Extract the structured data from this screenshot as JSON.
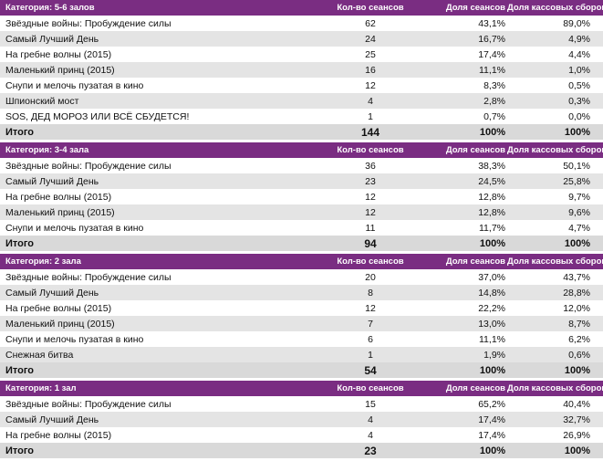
{
  "columns": {
    "sessions": "Кол-во сеансов",
    "share_sessions": "Доля сеансов",
    "share_boxoffice": "Доля кассовых сборов"
  },
  "total_label": "Итого",
  "categories": [
    {
      "title": "Категория: 5-6 залов",
      "rows": [
        {
          "film": "Звёздные войны: Пробуждение силы",
          "sessions": "62",
          "share_sessions": "43,1%",
          "share_boxoffice": "89,0%"
        },
        {
          "film": "Самый Лучший День",
          "sessions": "24",
          "share_sessions": "16,7%",
          "share_boxoffice": "4,9%"
        },
        {
          "film": "На гребне волны (2015)",
          "sessions": "25",
          "share_sessions": "17,4%",
          "share_boxoffice": "4,4%"
        },
        {
          "film": "Маленький принц (2015)",
          "sessions": "16",
          "share_sessions": "11,1%",
          "share_boxoffice": "1,0%"
        },
        {
          "film": "Снупи и мелочь пузатая в кино",
          "sessions": "12",
          "share_sessions": "8,3%",
          "share_boxoffice": "0,5%"
        },
        {
          "film": "Шпионский мост",
          "sessions": "4",
          "share_sessions": "2,8%",
          "share_boxoffice": "0,3%"
        },
        {
          "film": "SOS, ДЕД МОРОЗ ИЛИ ВСЁ СБУДЕТСЯ!",
          "sessions": "1",
          "share_sessions": "0,7%",
          "share_boxoffice": "0,0%"
        }
      ],
      "total": {
        "sessions": "144",
        "share_sessions": "100%",
        "share_boxoffice": "100%"
      }
    },
    {
      "title": "Категория: 3-4 зала",
      "rows": [
        {
          "film": "Звёздные войны: Пробуждение силы",
          "sessions": "36",
          "share_sessions": "38,3%",
          "share_boxoffice": "50,1%"
        },
        {
          "film": "Самый Лучший День",
          "sessions": "23",
          "share_sessions": "24,5%",
          "share_boxoffice": "25,8%"
        },
        {
          "film": "На гребне волны (2015)",
          "sessions": "12",
          "share_sessions": "12,8%",
          "share_boxoffice": "9,7%"
        },
        {
          "film": "Маленький принц (2015)",
          "sessions": "12",
          "share_sessions": "12,8%",
          "share_boxoffice": "9,6%"
        },
        {
          "film": "Снупи и мелочь пузатая в кино",
          "sessions": "11",
          "share_sessions": "11,7%",
          "share_boxoffice": "4,7%"
        }
      ],
      "total": {
        "sessions": "94",
        "share_sessions": "100%",
        "share_boxoffice": "100%"
      }
    },
    {
      "title": "Категория: 2 зала",
      "rows": [
        {
          "film": "Звёздные войны: Пробуждение силы",
          "sessions": "20",
          "share_sessions": "37,0%",
          "share_boxoffice": "43,7%"
        },
        {
          "film": "Самый Лучший День",
          "sessions": "8",
          "share_sessions": "14,8%",
          "share_boxoffice": "28,8%"
        },
        {
          "film": "На гребне волны (2015)",
          "sessions": "12",
          "share_sessions": "22,2%",
          "share_boxoffice": "12,0%"
        },
        {
          "film": "Маленький принц (2015)",
          "sessions": "7",
          "share_sessions": "13,0%",
          "share_boxoffice": "8,7%"
        },
        {
          "film": "Снупи и мелочь пузатая в кино",
          "sessions": "6",
          "share_sessions": "11,1%",
          "share_boxoffice": "6,2%"
        },
        {
          "film": "Снежная битва",
          "sessions": "1",
          "share_sessions": "1,9%",
          "share_boxoffice": "0,6%"
        }
      ],
      "total": {
        "sessions": "54",
        "share_sessions": "100%",
        "share_boxoffice": "100%"
      }
    },
    {
      "title": "Категория: 1 зал",
      "rows": [
        {
          "film": "Звёздные войны: Пробуждение силы",
          "sessions": "15",
          "share_sessions": "65,2%",
          "share_boxoffice": "40,4%"
        },
        {
          "film": "Самый Лучший День",
          "sessions": "4",
          "share_sessions": "17,4%",
          "share_boxoffice": "32,7%"
        },
        {
          "film": "На гребне волны (2015)",
          "sessions": "4",
          "share_sessions": "17,4%",
          "share_boxoffice": "26,9%"
        }
      ],
      "total": {
        "sessions": "23",
        "share_sessions": "100%",
        "share_boxoffice": "100%"
      }
    }
  ]
}
